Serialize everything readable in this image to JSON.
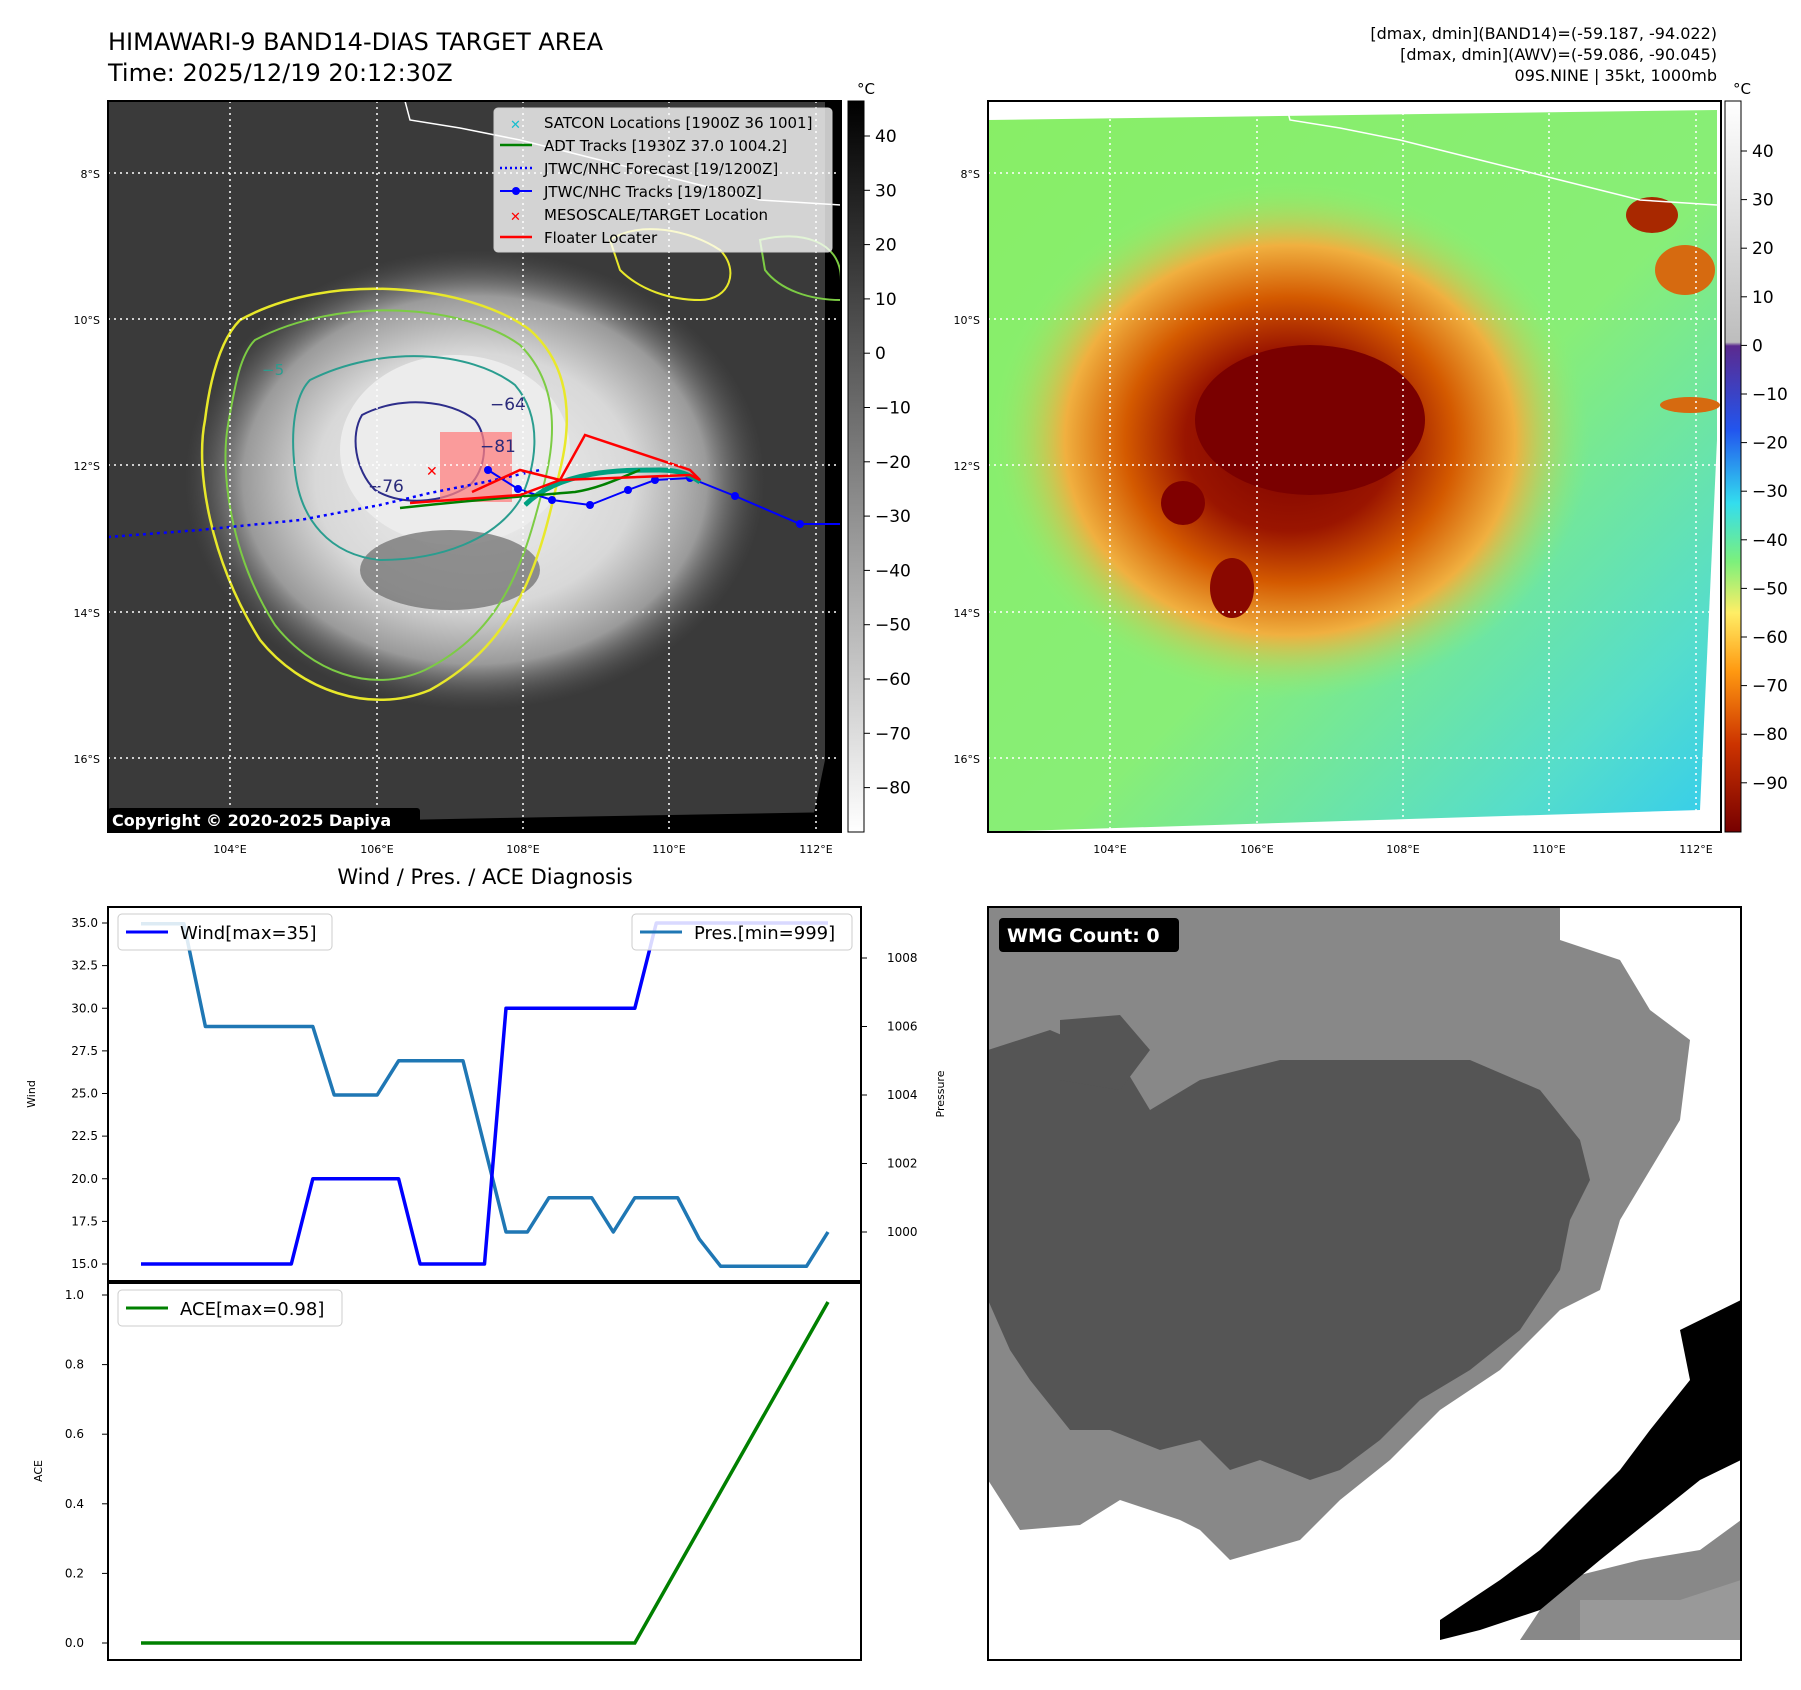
{
  "header": {
    "title": "HIMAWARI-9 BAND14-DIAS TARGET AREA",
    "time": "Time: 2025/12/19 20:12:30Z",
    "stats_band14": "[dmax, dmin](BAND14)=(-59.187, -94.022)",
    "stats_awv": "[dmax, dmin](AWV)=(-59.086, -90.045)",
    "storm": "09S.NINE | 35kt, 1000mb"
  },
  "copyright": "Copyright © 2020-2025 Dapiya",
  "map_axes": {
    "lat_labels": [
      "8°S",
      "10°S",
      "12°S",
      "14°S",
      "16°S"
    ],
    "lon_labels": [
      "104°E",
      "106°E",
      "108°E",
      "110°E",
      "112°E"
    ]
  },
  "colorbar_left": {
    "unit": "°C",
    "ticks": [
      "40",
      "30",
      "20",
      "10",
      "0",
      "−10",
      "−20",
      "−30",
      "−40",
      "−50",
      "−60",
      "−70",
      "−80"
    ]
  },
  "colorbar_right": {
    "unit": "°C",
    "ticks": [
      "40",
      "30",
      "20",
      "10",
      "0",
      "−10",
      "−20",
      "−30",
      "−40",
      "−50",
      "−60",
      "−70",
      "−80",
      "−90"
    ]
  },
  "legend": [
    {
      "label": "SATCON Locations [1900Z 36 1001]",
      "marker": "x",
      "color": "#17becf"
    },
    {
      "label": "ADT Tracks [1930Z 37.0 1004.2]",
      "marker": "line",
      "color": "#008000"
    },
    {
      "label": "JTWC/NHC Forecast [19/1200Z]",
      "marker": "dotted",
      "color": "#0000ff"
    },
    {
      "label": "JTWC/NHC Tracks [19/1800Z]",
      "marker": "line-dot",
      "color": "#0000ff"
    },
    {
      "label": "MESOSCALE/TARGET Location",
      "marker": "x",
      "color": "#ff0000"
    },
    {
      "label": "Floater Locater",
      "marker": "line",
      "color": "#ff0000"
    }
  ],
  "contour_labels": [
    "−64",
    "−81",
    "−76",
    "−5"
  ],
  "wmg": {
    "label": "WMG Count: 0"
  },
  "chart_data": [
    {
      "type": "line",
      "title": "Wind / Pres. / ACE Diagnosis",
      "ylabel": "Wind",
      "ylabel_right": "Pressure",
      "ylim": [
        14.5,
        35.5
      ],
      "ylim_right": [
        998.9,
        1009.4
      ],
      "yticks": [
        "35.0",
        "32.5",
        "30.0",
        "27.5",
        "25.0",
        "22.5",
        "20.0",
        "17.5",
        "15.0"
      ],
      "yticks_right": [
        "1008",
        "1006",
        "1004",
        "1002",
        "1000"
      ],
      "x": [
        0,
        1,
        2,
        3,
        4,
        5,
        6,
        7,
        8,
        9,
        10,
        11,
        12,
        13,
        14,
        15,
        16,
        17,
        18,
        19,
        20,
        21,
        22,
        23,
        24,
        25,
        26,
        27,
        28,
        29,
        30,
        31,
        32
      ],
      "series": [
        {
          "name": "Wind[max=35]",
          "color": "#0000ff",
          "values": [
            15,
            15,
            15,
            15,
            15,
            15,
            15,
            15,
            20,
            20,
            20,
            20,
            20,
            15,
            15,
            15,
            15,
            30,
            30,
            30,
            30,
            30,
            30,
            30,
            35,
            35,
            35,
            35,
            35,
            35,
            35,
            35,
            35
          ]
        },
        {
          "name": "Pres.[min=999]",
          "color": "#1f77b4",
          "axis": "right",
          "values": [
            1009,
            1009,
            1009,
            1006,
            1006,
            1006,
            1006,
            1006,
            1006,
            1004,
            1004,
            1004,
            1005,
            1005,
            1005,
            1005,
            1002.5,
            1000,
            1000,
            1001,
            1001,
            1001,
            1000,
            1001,
            1001,
            1001,
            999.8,
            999,
            999,
            999,
            999,
            999,
            1000
          ]
        }
      ]
    },
    {
      "type": "line",
      "ylabel": "ACE",
      "ylim": [
        -0.05,
        1.005
      ],
      "yticks": [
        "1.0",
        "0.8",
        "0.6",
        "0.4",
        "0.2",
        "0.0"
      ],
      "x": [
        0,
        23,
        32
      ],
      "series": [
        {
          "name": "ACE[max=0.98]",
          "color": "#008000",
          "values": [
            0.0,
            0.0,
            0.98
          ]
        }
      ]
    }
  ]
}
